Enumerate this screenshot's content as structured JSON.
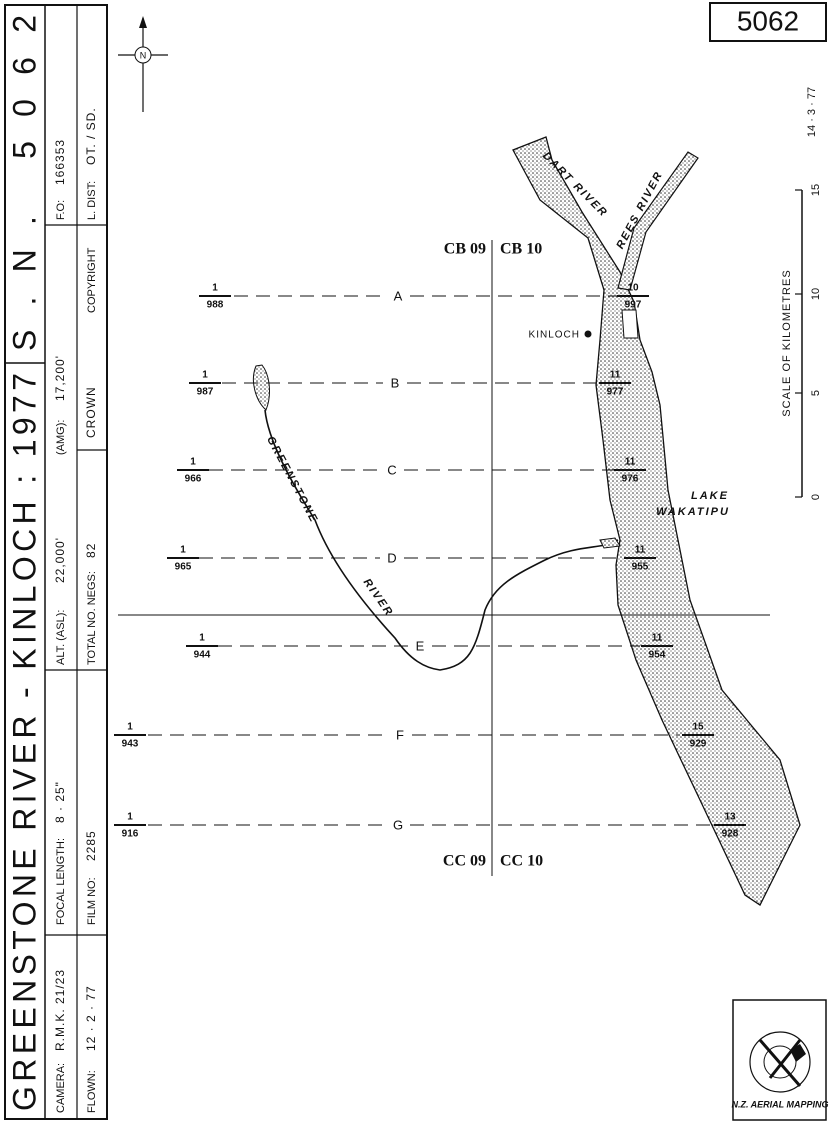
{
  "header": {
    "title": "GREENSTONE RIVER - KINLOCH : 1977",
    "serial": "S.N. 5062",
    "sheet": "5062",
    "date": "14 · 3 · 77"
  },
  "info": {
    "camera_label": "CAMERA:",
    "camera": "R.M.K. 21/23",
    "focal_label": "FOCAL LENGTH:",
    "focal": "8 · 25\"",
    "alt_label": "ALT. (ASL):",
    "alt": "22,000'",
    "amg_label": "(AMG):",
    "amg": "17,200'",
    "fo_label": "F.O:",
    "fo": "166353",
    "flown_label": "FLOWN:",
    "flown": "12 · 2 · 77",
    "film_label": "FILM NO:",
    "film": "2285",
    "negs_label": "TOTAL NO. NEGS:",
    "negs": "82",
    "crown": "CROWN",
    "copyright": "COPYRIGHT",
    "ldist_label": "L. DIST:",
    "ldist": "OT. / SD."
  },
  "scale": {
    "title": "SCALE OF KILOMETRES",
    "ticks": [
      "0",
      "5",
      "10",
      "15"
    ]
  },
  "grid_labels": [
    "CB 09",
    "CB 10",
    "CC 09",
    "CC 10"
  ],
  "places": {
    "kinloch": "KINLOCH",
    "lake": "LAKE",
    "lake2": "WAKATIPU",
    "dart": "DART RIVER",
    "rees": "REES RIVER",
    "greenstone": "GREENSTONE",
    "river": "RIVER"
  },
  "north": "N",
  "logo": "N.Z. AERIAL MAPPING",
  "flight_lines": [
    {
      "letter": "A",
      "start_run": "1",
      "start_frame": "988",
      "end_run": "10",
      "end_frame": "997"
    },
    {
      "letter": "B",
      "start_run": "1",
      "start_frame": "987",
      "end_run": "11",
      "end_frame": "977"
    },
    {
      "letter": "C",
      "start_run": "1",
      "start_frame": "966",
      "end_run": "11",
      "end_frame": "976"
    },
    {
      "letter": "D",
      "start_run": "1",
      "start_frame": "965",
      "end_run": "11",
      "end_frame": "955"
    },
    {
      "letter": "E",
      "start_run": "1",
      "start_frame": "944",
      "end_run": "11",
      "end_frame": "954"
    },
    {
      "letter": "F",
      "start_run": "1",
      "start_frame": "943",
      "end_run": "15",
      "end_frame": "929"
    },
    {
      "letter": "G",
      "start_run": "1",
      "start_frame": "916",
      "end_run": "13",
      "end_frame": "928"
    }
  ]
}
